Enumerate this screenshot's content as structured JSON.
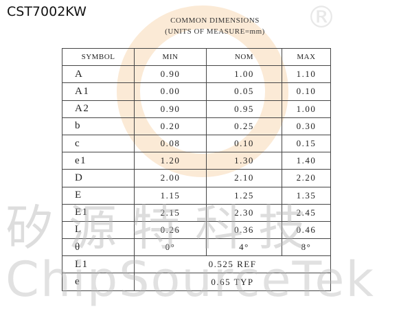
{
  "title": "CST7002KW",
  "mark": "®",
  "watermark": {
    "cn": "矽源特科技",
    "en": "ChipSourceTek"
  },
  "heading": {
    "line1": "COMMON DIMENSIONS",
    "line2": "(UNITS OF MEASURE=mm)"
  },
  "table": {
    "header": [
      "SYMBOL",
      "MIN",
      "NOM",
      "MAX"
    ],
    "rows": [
      [
        "A",
        "0.90",
        "1.00",
        "1.10"
      ],
      [
        "A1",
        "0.00",
        "0.05",
        "0.10"
      ],
      [
        "A2",
        "0.90",
        "0.95",
        "1.00"
      ],
      [
        "b",
        "0.20",
        "0.25",
        "0.30"
      ],
      [
        "c",
        "0.08",
        "0.10",
        "0.15"
      ],
      [
        "e1",
        "1.20",
        "1.30",
        "1.40"
      ],
      [
        "D",
        "2.00",
        "2.10",
        "2.20"
      ],
      [
        "E",
        "1.15",
        "1.25",
        "1.35"
      ],
      [
        "E1",
        "2.15",
        "2.30",
        "2.45"
      ],
      [
        "L",
        "0.26",
        "0.36",
        "0.46"
      ],
      [
        "θ",
        "0°",
        "4°",
        "8°"
      ],
      [
        "L1",
        "0.525 REF"
      ],
      [
        "e",
        "0.65 TYP"
      ]
    ]
  }
}
